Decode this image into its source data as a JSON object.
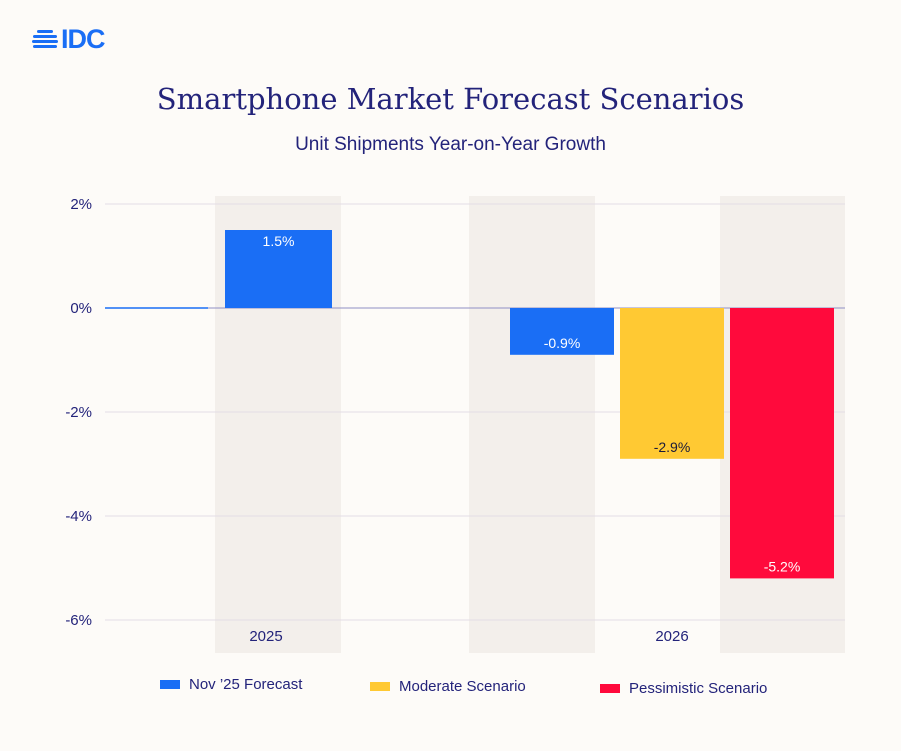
{
  "logo": "IDC",
  "chart_data": {
    "type": "bar",
    "title": "Smartphone Market Forecast Scenarios",
    "subtitle": "Unit Shipments Year-on-Year Growth",
    "categories": [
      "2025",
      "2026"
    ],
    "series": [
      {
        "name": "Nov ’25 Forecast",
        "color": "#1a6ef5",
        "values": [
          1.5,
          -0.9
        ],
        "labels": [
          "1.5%",
          "-0.9%"
        ]
      },
      {
        "name": "Moderate Scenario",
        "color": "#ffc933",
        "values": [
          null,
          -2.9
        ],
        "labels": [
          "",
          "-2.9%"
        ]
      },
      {
        "name": "Pessimistic Scenario",
        "color": "#ff0a3c",
        "values": [
          null,
          -5.2
        ],
        "labels": [
          "",
          "-5.2%"
        ]
      }
    ],
    "ylim": [
      -6,
      2
    ],
    "yticks": [
      2,
      0,
      -2,
      -4,
      -6
    ],
    "ytick_labels": [
      "2%",
      "0%",
      "-2%",
      "-4%",
      "-6%"
    ],
    "grid": true,
    "legend": "bottom"
  }
}
